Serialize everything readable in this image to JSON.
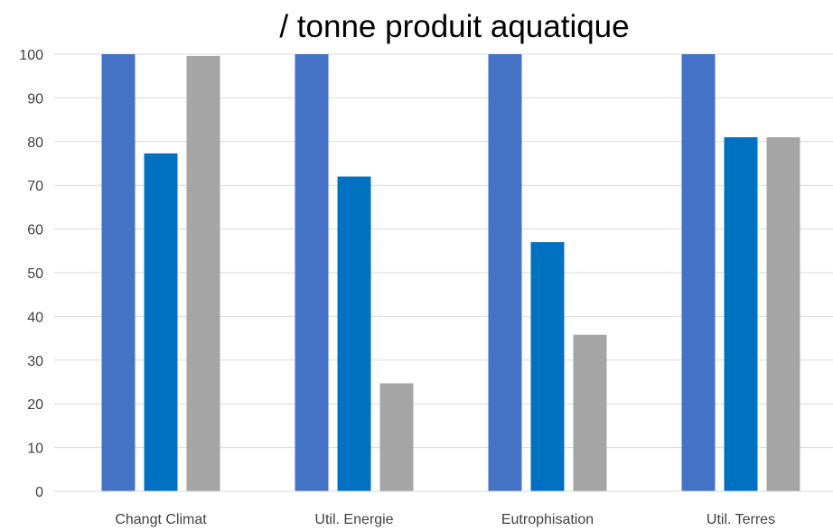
{
  "chart_data": {
    "type": "bar",
    "title": "/ tonne produit aquatique",
    "categories": [
      "Changt Climat",
      "Util. Energie",
      "Eutrophisation",
      "Util. Terres"
    ],
    "series": [
      {
        "values": [
          100,
          100,
          100,
          100
        ],
        "color": "#4472C4"
      },
      {
        "values": [
          77.3,
          72,
          57,
          81
        ],
        "color": "#0070C0"
      },
      {
        "values": [
          99.6,
          24.7,
          35.8,
          81
        ],
        "color": "#A5A5A5"
      }
    ],
    "ylim": [
      0,
      100
    ],
    "yticks": [
      0,
      10,
      20,
      30,
      40,
      50,
      60,
      70,
      80,
      90,
      100
    ],
    "grid": true,
    "legend": "none",
    "xlabel": "",
    "ylabel": ""
  }
}
